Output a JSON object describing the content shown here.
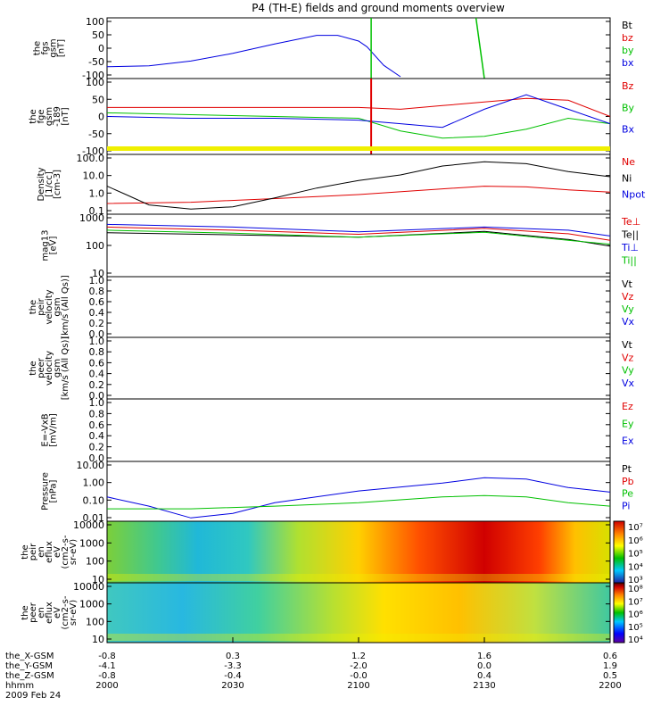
{
  "title": "P4 (TH-E) fields and ground moments overview",
  "panels": [
    {
      "ylabel": [
        "the",
        "fgs",
        "gsm",
        "[nT]"
      ],
      "yticks": [
        "100",
        "50",
        "0",
        "-50",
        "-100"
      ],
      "legend": [
        {
          "label": "Bt",
          "color": "#000000"
        },
        {
          "label": "bz",
          "color": "#e00000"
        },
        {
          "label": "by",
          "color": "#00c000"
        },
        {
          "label": "bx",
          "color": "#0000e0"
        }
      ]
    },
    {
      "ylabel": [
        "the",
        "fge",
        "gsm",
        "-189",
        "[nT]"
      ],
      "yticks": [
        "100",
        "50",
        "0",
        "-50",
        "-100"
      ],
      "legend": [
        {
          "label": "Bz",
          "color": "#e00000"
        },
        {
          "label": "By",
          "color": "#00c000"
        },
        {
          "label": "Bx",
          "color": "#0000e0"
        }
      ]
    },
    {
      "ylabel": [
        "Density",
        "[1/cc]",
        "[cm-3]"
      ],
      "yticks": [
        "100.0",
        "10.0",
        "1.0",
        "0.1"
      ],
      "legend": [
        {
          "label": "Ne",
          "color": "#e00000"
        },
        {
          "label": "Ni",
          "color": "#000000"
        },
        {
          "label": "Npot",
          "color": "#0000e0"
        }
      ]
    },
    {
      "ylabel": [
        "mag13",
        "[eV]"
      ],
      "yticks": [
        "1000",
        "100",
        "10"
      ],
      "legend": [
        {
          "label": "Te⊥",
          "color": "#e00000"
        },
        {
          "label": "Te||",
          "color": "#000000"
        },
        {
          "label": "Ti⊥",
          "color": "#0000e0"
        },
        {
          "label": "Ti||",
          "color": "#00c000"
        }
      ]
    },
    {
      "ylabel": [
        "the",
        "peir",
        "velocity",
        "gsm",
        "[km/s (All Qs)]"
      ],
      "yticks": [
        "1.0",
        "0.8",
        "0.6",
        "0.4",
        "0.2",
        "0.0"
      ],
      "legend": [
        {
          "label": "Vt",
          "color": "#000000"
        },
        {
          "label": "Vz",
          "color": "#e00000"
        },
        {
          "label": "Vy",
          "color": "#00c000"
        },
        {
          "label": "Vx",
          "color": "#0000e0"
        }
      ]
    },
    {
      "ylabel": [
        "the",
        "peer",
        "velocity",
        "gsm",
        "[km/s (All Qs)]"
      ],
      "yticks": [
        "1.0",
        "0.8",
        "0.6",
        "0.4",
        "0.2",
        "0.0"
      ],
      "legend": [
        {
          "label": "Vt",
          "color": "#000000"
        },
        {
          "label": "Vz",
          "color": "#e00000"
        },
        {
          "label": "Vy",
          "color": "#00c000"
        },
        {
          "label": "Vx",
          "color": "#0000e0"
        }
      ]
    },
    {
      "ylabel": [
        "E=-VxB",
        "[mV/m]"
      ],
      "yticks": [
        "1.0",
        "0.8",
        "0.6",
        "0.4",
        "0.2",
        "0.0"
      ],
      "legend": [
        {
          "label": "Ez",
          "color": "#e00000"
        },
        {
          "label": "Ey",
          "color": "#00c000"
        },
        {
          "label": "Ex",
          "color": "#0000e0"
        }
      ]
    },
    {
      "ylabel": [
        "Pressure",
        "[nPa]"
      ],
      "yticks": [
        "10.00",
        "1.00",
        "0.10",
        "0.01"
      ],
      "legend": [
        {
          "label": "Pt",
          "color": "#000000"
        },
        {
          "label": "Pb",
          "color": "#e00000"
        },
        {
          "label": "Pe",
          "color": "#00c000"
        },
        {
          "label": "Pi",
          "color": "#0000e0"
        }
      ]
    },
    {
      "ylabel": [
        "the",
        "peir",
        "en",
        "eflux",
        "eV",
        "(cm2-s-",
        "sr-eV)"
      ],
      "yticks": [
        "10000",
        "1000",
        "100",
        "10"
      ],
      "colorbar": [
        "10⁷",
        "10⁶",
        "10⁵",
        "10⁴",
        "10³"
      ]
    },
    {
      "ylabel": [
        "the",
        "peer",
        "en",
        "eflux",
        "eV",
        "(cm2-s-",
        "sr-eV)"
      ],
      "yticks": [
        "10000",
        "1000",
        "100",
        "10"
      ],
      "colorbar": [
        "10⁸",
        "10⁷",
        "10⁶",
        "10⁵",
        "10⁴"
      ]
    }
  ],
  "ephemeris": {
    "rows": [
      "the_X-GSM",
      "the_Y-GSM",
      "the_Z-GSM",
      "hhmm"
    ],
    "date": "2009 Feb 24",
    "columns": [
      [
        "-0.8",
        "-4.1",
        "-0.8",
        "2000"
      ],
      [
        "0.3",
        "-3.3",
        "-0.4",
        "2030"
      ],
      [
        "1.2",
        "-2.0",
        "-0.0",
        "2100"
      ],
      [
        "1.6",
        "0.0",
        "0.4",
        "2130"
      ],
      [
        "0.6",
        "1.9",
        "0.5",
        "2200"
      ]
    ]
  },
  "chart_data": {
    "type": "line",
    "title": "P4 (TH-E) fields and ground moments overview",
    "x_label": "hhmm",
    "x_ticks": [
      "2000",
      "2030",
      "2100",
      "2130",
      "2200"
    ],
    "x_range": [
      "2000",
      "2200"
    ],
    "date": "2009 Feb 24",
    "panels": [
      {
        "name": "the fgs gsm [nT]",
        "ylim": [
          -100,
          100
        ],
        "series": [
          {
            "name": "bx",
            "color": "#0000e0",
            "t": [
              0,
              10,
              20,
              30,
              40,
              50,
              55,
              60,
              62,
              66,
              70
            ],
            "v": [
              -65,
              -62,
              -45,
              -18,
              15,
              45,
              45,
              25,
              5,
              -60,
              -100
            ]
          }
        ]
      },
      {
        "name": "the fge gsm -189 [nT]",
        "ylim": [
          -100,
          100
        ],
        "series": [
          {
            "name": "Bz",
            "color": "#e00000",
            "t": [
              0,
              20,
              40,
              60,
              70,
              80,
              90,
              100,
              110,
              120
            ],
            "v": [
              25,
              25,
              25,
              25,
              20,
              30,
              40,
              50,
              45,
              0
            ]
          },
          {
            "name": "By",
            "color": "#00c000",
            "t": [
              0,
              20,
              40,
              60,
              70,
              80,
              90,
              100,
              110,
              120
            ],
            "v": [
              10,
              5,
              0,
              -5,
              -40,
              -60,
              -55,
              -35,
              -5,
              -20
            ]
          },
          {
            "name": "Bx",
            "color": "#0000e0",
            "t": [
              0,
              20,
              40,
              60,
              70,
              80,
              90,
              100,
              110,
              120
            ],
            "v": [
              0,
              -5,
              -5,
              -10,
              -20,
              -30,
              20,
              60,
              20,
              -20
            ]
          }
        ]
      },
      {
        "name": "Density [1/cc]",
        "ylim": [
          0.1,
          100
        ],
        "log": true,
        "series": [
          {
            "name": "Ne",
            "color": "#e00000",
            "t": [
              0,
              20,
              40,
              60,
              80,
              90,
              100,
              110,
              120
            ],
            "v": [
              0.3,
              0.35,
              0.55,
              0.9,
              1.8,
              2.5,
              2.3,
              1.6,
              1.2
            ]
          },
          {
            "name": "Ni",
            "color": "#000000",
            "t": [
              0,
              5,
              10,
              20,
              30,
              40,
              50,
              60,
              70,
              80,
              90,
              100,
              110,
              120
            ],
            "v": [
              2.5,
              0.8,
              0.25,
              0.15,
              0.2,
              0.6,
              2,
              5,
              10,
              30,
              50,
              40,
              15,
              8
            ]
          }
        ]
      },
      {
        "name": "mag13 [eV]",
        "ylim": [
          10,
          1000
        ],
        "log": true,
        "series": [
          {
            "name": "Te⊥",
            "color": "#e00000",
            "t": [
              0,
              30,
              60,
              90,
              110,
              120
            ],
            "v": [
              420,
              330,
              240,
              380,
              250,
              150
            ]
          },
          {
            "name": "Te||",
            "color": "#000000",
            "t": [
              0,
              30,
              60,
              90,
              110,
              120
            ],
            "v": [
              270,
              230,
              190,
              300,
              160,
              95
            ]
          },
          {
            "name": "Ti⊥",
            "color": "#0000e0",
            "t": [
              0,
              30,
              60,
              90,
              110,
              120
            ],
            "v": [
              520,
              420,
              290,
              420,
              330,
              210
            ]
          },
          {
            "name": "Ti||",
            "color": "#00c000",
            "t": [
              0,
              30,
              60,
              90,
              110,
              120
            ],
            "v": [
              330,
              260,
              190,
              280,
              150,
              110
            ]
          }
        ]
      },
      {
        "name": "the peir velocity gsm",
        "ylim": [
          0,
          1
        ],
        "series": []
      },
      {
        "name": "the peer velocity gsm",
        "ylim": [
          0,
          1
        ],
        "series": []
      },
      {
        "name": "E=-VxB [mV/m]",
        "ylim": [
          0,
          1
        ],
        "series": []
      },
      {
        "name": "Pressure [nPa]",
        "ylim": [
          0.004,
          20
        ],
        "log": true,
        "series": [
          {
            "name": "Pi",
            "color": "#0000e0",
            "t": [
              0,
              10,
              20,
              30,
              40,
              60,
              80,
              90,
              100,
              110,
              120
            ],
            "v": [
              0.12,
              0.03,
              0.005,
              0.01,
              0.05,
              0.3,
              1.0,
              2.2,
              1.8,
              0.5,
              0.25
            ]
          },
          {
            "name": "Pe",
            "color": "#00c000",
            "t": [
              0,
              20,
              40,
              60,
              80,
              90,
              100,
              110,
              120
            ],
            "v": [
              0.02,
              0.02,
              0.03,
              0.05,
              0.12,
              0.15,
              0.12,
              0.05,
              0.03
            ]
          }
        ]
      },
      {
        "name": "the peir en eflux",
        "type": "heatmap",
        "ylim": [
          10,
          10000
        ]
      },
      {
        "name": "the peer en eflux",
        "type": "heatmap",
        "ylim": [
          10,
          10000
        ]
      }
    ]
  }
}
